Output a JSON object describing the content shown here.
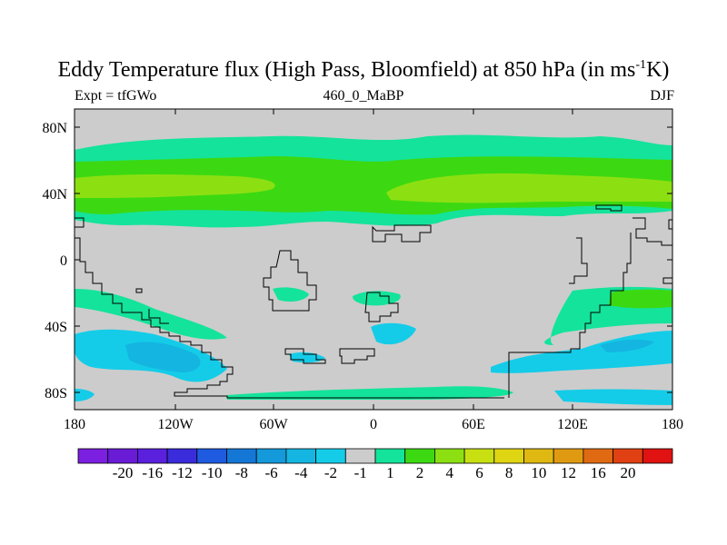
{
  "map": {
    "title_main": "Eddy Temperature flux (High Pass, Bloomfield) at 850 hPa (in ms",
    "title_sup": "-1",
    "title_end": "K)",
    "experiment": "Expt = tfGWo",
    "run_id": "460_0_MaBP",
    "season": "DJF",
    "lat_labels": [
      "80N",
      "40N",
      "0",
      "40S",
      "80S"
    ],
    "lon_labels": [
      "180",
      "120W",
      "60W",
      "0",
      "60E",
      "120E",
      "180"
    ]
  },
  "colorbar": {
    "colors": [
      "#7B1FE0",
      "#6A1BD6",
      "#5A20DD",
      "#3A2BDB",
      "#1F5BE0",
      "#1477D6",
      "#1499DB",
      "#14B5E0",
      "#14CCE8",
      "#CCCCCC",
      "#14E39B",
      "#3CD912",
      "#8CE012",
      "#C8E012",
      "#E0D512",
      "#E0B812",
      "#E09A12",
      "#E06A12",
      "#E04012",
      "#E01212"
    ],
    "labels": [
      "-20",
      "-16",
      "-12",
      "-10",
      "-8",
      "-6",
      "-4",
      "-2",
      "-1",
      "1",
      "2",
      "4",
      "6",
      "8",
      "10",
      "12",
      "16",
      "20"
    ]
  },
  "palette": {
    "background": "#CCCCCC",
    "c_pos_1": "#14E39B",
    "c_pos_2": "#3CD912",
    "c_pos_3": "#8CE012",
    "c_neg_1": "#14CCE8",
    "c_neg_2": "#14B5E0"
  }
}
